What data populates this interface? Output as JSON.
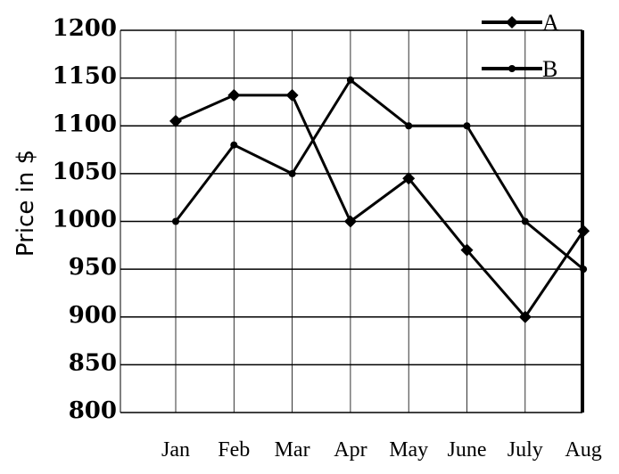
{
  "chart_data": {
    "type": "line",
    "title": "",
    "xlabel": "",
    "ylabel": "Price in $",
    "categories": [
      "Jan",
      "Feb",
      "Mar",
      "Apr",
      "May",
      "June",
      "July",
      "Aug"
    ],
    "ylim": [
      800,
      1200
    ],
    "yticks": [
      800,
      850,
      900,
      950,
      1000,
      1050,
      1100,
      1150,
      1200
    ],
    "grid": true,
    "legend_position": "top-right",
    "series": [
      {
        "name": "A",
        "marker": "diamond",
        "color": "#000000",
        "values": [
          1105,
          1132,
          1132,
          1000,
          1045,
          970,
          900,
          990
        ]
      },
      {
        "name": "B",
        "marker": "circle",
        "color": "#000000",
        "values": [
          1000,
          1080,
          1050,
          1148,
          1100,
          1100,
          1000,
          950
        ]
      }
    ]
  }
}
